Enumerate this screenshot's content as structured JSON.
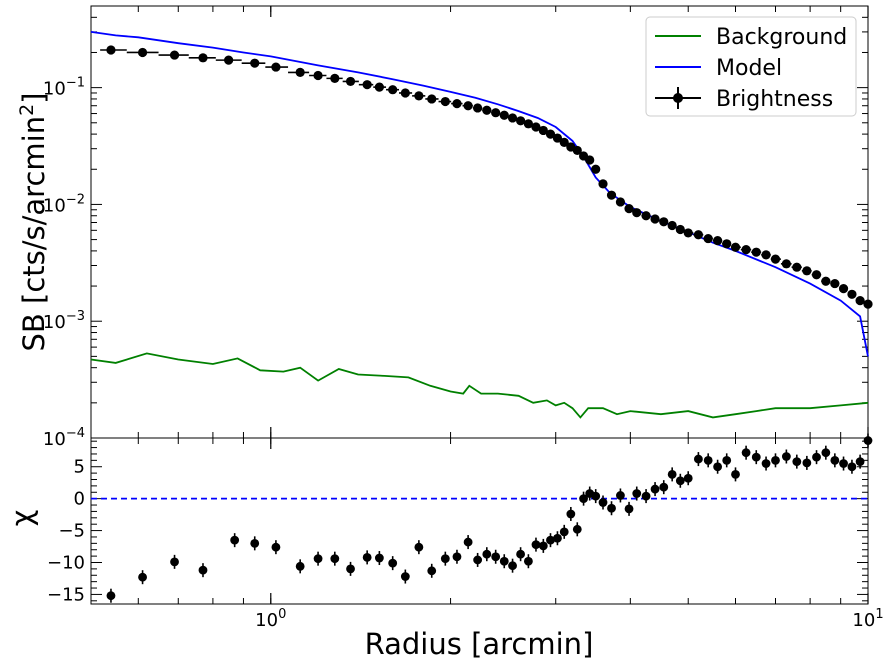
{
  "chart_data": [
    {
      "type": "scatter",
      "panel": "surface-brightness",
      "ylabel": "SB [cts/s/arcmin",
      "ylabel_sup": "2",
      "ylabel_end": "]",
      "xscale": "log",
      "yscale": "log",
      "xlim": [
        0.5,
        10
      ],
      "ylim": [
        0.0001,
        0.5
      ],
      "y_ticks": [
        {
          "value": 0.1,
          "base": "10",
          "exp": "−1"
        },
        {
          "value": 0.01,
          "base": "10",
          "exp": "−2"
        },
        {
          "value": 0.001,
          "base": "10",
          "exp": "−3"
        },
        {
          "value": 0.0001,
          "base": "10",
          "exp": "−4"
        }
      ],
      "legend": {
        "placement": "top-right",
        "entries": [
          {
            "label": "Background",
            "color": "#008000",
            "kind": "line"
          },
          {
            "label": "Model",
            "color": "#0000ff",
            "kind": "line"
          },
          {
            "label": "Brightness",
            "color": "#000000",
            "kind": "errorbar"
          }
        ]
      },
      "series": [
        {
          "name": "Brightness",
          "color": "#000000",
          "style": "errorbar",
          "x": [
            0.54,
            0.61,
            0.69,
            0.77,
            0.85,
            0.94,
            1.02,
            1.12,
            1.2,
            1.28,
            1.36,
            1.45,
            1.52,
            1.6,
            1.68,
            1.77,
            1.86,
            1.96,
            2.05,
            2.14,
            2.22,
            2.3,
            2.38,
            2.46,
            2.54,
            2.62,
            2.7,
            2.78,
            2.86,
            2.94,
            3.02,
            3.1,
            3.18,
            3.26,
            3.34,
            3.42,
            3.5,
            3.6,
            3.72,
            3.85,
            3.98,
            4.1,
            4.25,
            4.4,
            4.55,
            4.7,
            4.85,
            5.0,
            5.2,
            5.4,
            5.6,
            5.8,
            6.0,
            6.25,
            6.5,
            6.75,
            7.0,
            7.3,
            7.6,
            7.9,
            8.2,
            8.5,
            8.8,
            9.1,
            9.4,
            9.7,
            10.0
          ],
          "y": [
            0.21,
            0.2,
            0.19,
            0.18,
            0.172,
            0.162,
            0.15,
            0.135,
            0.127,
            0.12,
            0.113,
            0.106,
            0.101,
            0.096,
            0.09,
            0.085,
            0.08,
            0.076,
            0.073,
            0.07,
            0.067,
            0.064,
            0.061,
            0.058,
            0.055,
            0.052,
            0.049,
            0.046,
            0.043,
            0.04,
            0.037,
            0.034,
            0.031,
            0.029,
            0.026,
            0.024,
            0.02,
            0.015,
            0.012,
            0.0105,
            0.0092,
            0.0085,
            0.008,
            0.0075,
            0.0071,
            0.0066,
            0.0061,
            0.0057,
            0.0055,
            0.0051,
            0.0049,
            0.0046,
            0.0043,
            0.0041,
            0.0039,
            0.0037,
            0.0034,
            0.0031,
            0.0029,
            0.0027,
            0.0025,
            0.0022,
            0.0021,
            0.0019,
            0.0017,
            0.0015,
            0.0014
          ]
        },
        {
          "name": "Model",
          "color": "#0000ff",
          "style": "line",
          "x": [
            0.5,
            0.55,
            0.6,
            0.7,
            0.8,
            0.9,
            1.0,
            1.2,
            1.4,
            1.6,
            1.8,
            2.0,
            2.2,
            2.4,
            2.6,
            2.8,
            3.0,
            3.2,
            3.35,
            3.5,
            3.7,
            4.0,
            4.5,
            5.0,
            5.5,
            6.0,
            7.0,
            8.0,
            9.0,
            9.7,
            10.0
          ],
          "y": [
            0.3,
            0.28,
            0.27,
            0.24,
            0.22,
            0.2,
            0.185,
            0.155,
            0.135,
            0.118,
            0.104,
            0.092,
            0.082,
            0.072,
            0.063,
            0.055,
            0.046,
            0.035,
            0.025,
            0.017,
            0.0125,
            0.0095,
            0.0072,
            0.0058,
            0.0047,
            0.004,
            0.0029,
            0.0021,
            0.0015,
            0.0011,
            0.0005
          ]
        },
        {
          "name": "Background",
          "color": "#008000",
          "style": "line",
          "x": [
            0.5,
            0.55,
            0.62,
            0.7,
            0.8,
            0.88,
            0.96,
            1.05,
            1.12,
            1.2,
            1.3,
            1.4,
            1.55,
            1.7,
            1.85,
            2.0,
            2.1,
            2.15,
            2.25,
            2.4,
            2.6,
            2.75,
            2.9,
            3.0,
            3.1,
            3.2,
            3.3,
            3.4,
            3.6,
            3.8,
            4.0,
            4.5,
            5.0,
            5.5,
            6.0,
            6.5,
            7.0,
            8.0,
            9.0,
            10.0
          ],
          "y": [
            0.00047,
            0.00044,
            0.00053,
            0.00047,
            0.00043,
            0.00048,
            0.00038,
            0.00037,
            0.0004,
            0.00031,
            0.00039,
            0.00035,
            0.00034,
            0.00033,
            0.00028,
            0.00025,
            0.00024,
            0.00028,
            0.00024,
            0.00024,
            0.00023,
            0.0002,
            0.00021,
            0.00019,
            0.0002,
            0.00018,
            0.00015,
            0.00018,
            0.00018,
            0.00016,
            0.00017,
            0.00016,
            0.00017,
            0.00015,
            0.00016,
            0.00017,
            0.00018,
            0.00018,
            0.00019,
            0.0002
          ]
        }
      ]
    },
    {
      "type": "scatter",
      "panel": "residuals",
      "ylabel": "χ",
      "xlabel": "Radius [arcmin]",
      "xscale": "log",
      "xlim": [
        0.5,
        10
      ],
      "ylim": [
        -16.5,
        9.5
      ],
      "y_ticks": [
        5,
        0,
        -5,
        -10,
        -15
      ],
      "y_tick_labels": [
        "5",
        "0",
        "−5",
        "−10",
        "−15"
      ],
      "x_ticks": [
        {
          "value": 1,
          "base": "10",
          "exp": "0"
        },
        {
          "value": 10,
          "base": "10",
          "exp": "1"
        }
      ],
      "reference_line": {
        "y": 0,
        "color": "#0000ff",
        "style": "dashed"
      },
      "series": [
        {
          "name": "chi",
          "color": "#000000",
          "style": "errorbar",
          "x": [
            0.54,
            0.61,
            0.69,
            0.77,
            0.87,
            0.94,
            1.02,
            1.12,
            1.2,
            1.28,
            1.36,
            1.45,
            1.52,
            1.6,
            1.68,
            1.77,
            1.86,
            1.96,
            2.05,
            2.14,
            2.22,
            2.3,
            2.38,
            2.46,
            2.54,
            2.62,
            2.7,
            2.78,
            2.86,
            2.94,
            3.02,
            3.1,
            3.18,
            3.26,
            3.34,
            3.42,
            3.5,
            3.6,
            3.72,
            3.85,
            3.98,
            4.1,
            4.25,
            4.4,
            4.55,
            4.7,
            4.85,
            5.0,
            5.2,
            5.4,
            5.6,
            5.8,
            6.0,
            6.25,
            6.5,
            6.75,
            7.0,
            7.3,
            7.6,
            7.9,
            8.2,
            8.5,
            8.8,
            9.1,
            9.4,
            9.7,
            10.0
          ],
          "y": [
            -15.2,
            -12.3,
            -9.9,
            -11.2,
            -6.5,
            -7.0,
            -7.6,
            -10.6,
            -9.4,
            -9.4,
            -11.0,
            -9.2,
            -9.3,
            -10.1,
            -12.2,
            -7.6,
            -11.3,
            -9.4,
            -9.1,
            -6.8,
            -9.6,
            -8.7,
            -9.1,
            -9.8,
            -10.5,
            -8.7,
            -9.8,
            -7.2,
            -7.4,
            -6.5,
            -6.2,
            -5.2,
            -2.4,
            -4.8,
            0.0,
            0.8,
            0.4,
            -0.6,
            -1.5,
            0.5,
            -1.6,
            0.8,
            0.4,
            1.5,
            1.8,
            3.8,
            2.8,
            3.2,
            6.2,
            6.0,
            5.0,
            6.0,
            3.8,
            7.2,
            6.5,
            5.5,
            6.0,
            6.6,
            5.8,
            5.6,
            6.5,
            7.2,
            6.0,
            5.5,
            5.0,
            5.8,
            9.1
          ]
        }
      ]
    }
  ]
}
